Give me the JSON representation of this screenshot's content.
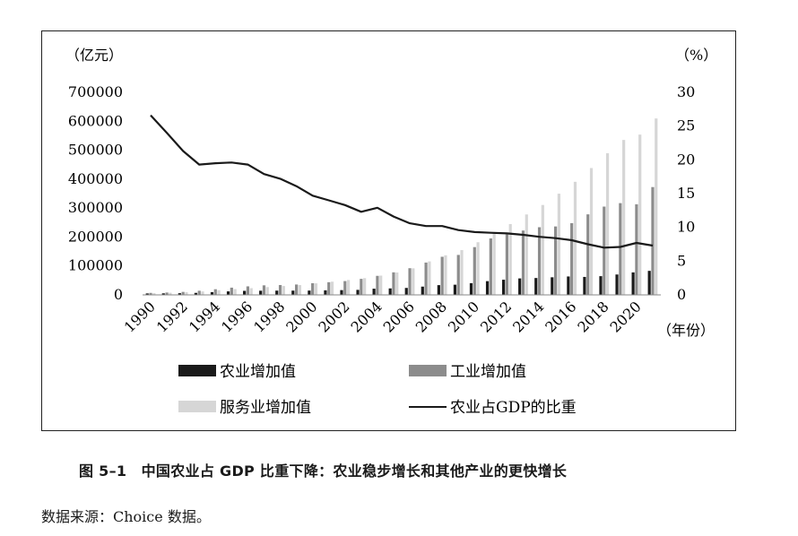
{
  "chart_data": {
    "type": "bar+line",
    "left_axis_unit": "（亿元）",
    "right_axis_unit": "（%）",
    "x_axis_unit": "（年份）",
    "left_ylim": [
      0,
      700000
    ],
    "left_ticks": [
      "0",
      "100000",
      "200000",
      "300000",
      "400000",
      "500000",
      "600000",
      "700000"
    ],
    "left_tick_values": [
      0,
      100000,
      200000,
      300000,
      400000,
      500000,
      600000,
      700000
    ],
    "right_ylim": [
      0,
      30
    ],
    "right_ticks": [
      "0",
      "5",
      "10",
      "15",
      "20",
      "25",
      "30"
    ],
    "right_tick_values": [
      0,
      5,
      10,
      15,
      20,
      25,
      30
    ],
    "years": [
      1990,
      1991,
      1992,
      1993,
      1994,
      1995,
      1996,
      1997,
      1998,
      1999,
      2000,
      2001,
      2002,
      2003,
      2004,
      2005,
      2006,
      2007,
      2008,
      2009,
      2010,
      2011,
      2012,
      2013,
      2014,
      2015,
      2016,
      2017,
      2018,
      2019,
      2020,
      2021
    ],
    "x_tick_labels": [
      "1990",
      "1992",
      "1994",
      "1996",
      "1998",
      "2000",
      "2002",
      "2004",
      "2006",
      "2008",
      "2010",
      "2012",
      "2014",
      "2016",
      "2018",
      "2020"
    ],
    "series": [
      {
        "name": "农业增加值",
        "kind": "bar",
        "color": "#1a1a1a",
        "values": [
          5062,
          5342,
          5867,
          6964,
          9572,
          12135,
          14015,
          14442,
          14818,
          14770,
          14945,
          15781,
          16537,
          17382,
          21413,
          22420,
          24040,
          28627,
          33702,
          35226,
          40534,
          47486,
          52374,
          56967,
          58332,
          60871,
          63671,
          62099,
          64745,
          70474,
          77754,
          83086
        ]
      },
      {
        "name": "工业增加值",
        "kind": "bar",
        "color": "#8c8c8c",
        "values": [
          6904,
          8138,
          10340,
          14248,
          19546,
          25024,
          29529,
          33024,
          34134,
          35861,
          40259,
          43855,
          47776,
          55363,
          65776,
          77958,
          92238,
          111694,
          131728,
          138096,
          165126,
          195143,
          208906,
          222338,
          233856,
          236506,
          247878,
          278328,
          305160,
          317109,
          313071,
          372575
        ]
      },
      {
        "name": "服务业增加值",
        "kind": "bar",
        "color": "#d6d6d6",
        "values": [
          5888,
          7337,
          9357,
          11916,
          16180,
          19978,
          23326,
          26988,
          30580,
          33873,
          39899,
          45701,
          51423,
          57756,
          66649,
          77428,
          91760,
          115810,
          136805,
          154748,
          182058,
          216099,
          244856,
          277984,
          310654,
          349745,
          390828,
          438356,
          489701,
          535371,
          553977,
          609680
        ]
      },
      {
        "name": "农业占GDP的比重",
        "kind": "line",
        "axis": "right",
        "color": "#1a1a1a",
        "values": [
          26.6,
          24.0,
          21.3,
          19.3,
          19.5,
          19.6,
          19.3,
          17.9,
          17.2,
          16.1,
          14.7,
          14.0,
          13.3,
          12.3,
          12.9,
          11.6,
          10.6,
          10.2,
          10.2,
          9.6,
          9.3,
          9.2,
          9.1,
          8.9,
          8.6,
          8.4,
          8.1,
          7.5,
          7.0,
          7.1,
          7.7,
          7.3
        ]
      }
    ]
  },
  "legend": {
    "agri": "农业增加值",
    "industry": "工业增加值",
    "service": "服务业增加值",
    "share": "农业占GDP的比重"
  },
  "caption": "图 5–1　中国农业占 GDP 比重下降：农业稳步增长和其他产业的更快增长",
  "source": "数据来源：Choice 数据。"
}
